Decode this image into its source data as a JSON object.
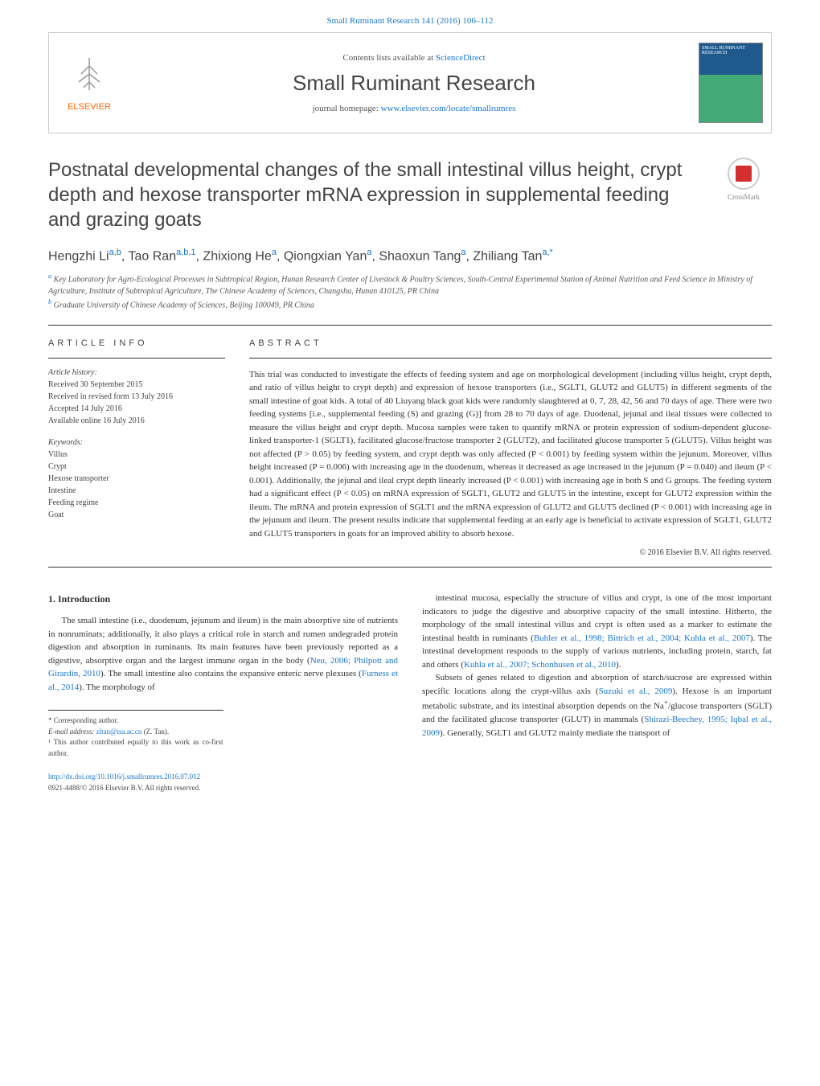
{
  "header": {
    "citation_link": "Small Ruminant Research 141 (2016) 106–112",
    "contents_prefix": "Contents lists available at ",
    "contents_link": "ScienceDirect",
    "journal_name": "Small Ruminant Research",
    "homepage_prefix": "journal homepage: ",
    "homepage_link": "www.elsevier.com/locate/smallrumres",
    "publisher_name": "ELSEVIER",
    "cover_text": "SMALL RUMINANT RESEARCH",
    "crossmark_label": "CrossMark"
  },
  "article": {
    "title": "Postnatal developmental changes of the small intestinal villus height, crypt depth and hexose transporter mRNA expression in supplemental feeding and grazing goats",
    "authors_html": "Hengzhi Li<sup>a,b</sup>, Tao Ran<sup>a,b,1</sup>, Zhixiong He<sup>a</sup>, Qiongxian Yan<sup>a</sup>, Shaoxun Tang<sup>a</sup>, Zhiliang Tan<sup>a,*</sup>",
    "affiliations": [
      "<sup>a</sup> Key Laboratory for Agro-Ecological Processes in Subtropical Region, Hunan Research Center of Livestock & Poultry Sciences, South-Central Experimental Station of Animal Nutrition and Feed Science in Ministry of Agriculture, Institute of Subtropical Agriculture, The Chinese Academy of Sciences, Changsha, Hunan 410125, PR China",
      "<sup>b</sup> Graduate University of Chinese Academy of Sciences, Beijing 100049, PR China"
    ]
  },
  "info": {
    "heading": "ARTICLE INFO",
    "history_label": "Article history:",
    "history": [
      "Received 30 September 2015",
      "Received in revised form 13 July 2016",
      "Accepted 14 July 2016",
      "Available online 16 July 2016"
    ],
    "keywords_label": "Keywords:",
    "keywords": [
      "Villus",
      "Crypt",
      "Hexose transporter",
      "Intestine",
      "Feeding regime",
      "Goat"
    ]
  },
  "abstract": {
    "heading": "ABSTRACT",
    "text": "This trial was conducted to investigate the effects of feeding system and age on morphological development (including villus height, crypt depth, and ratio of villus height to crypt depth) and expression of hexose transporters (i.e., SGLT1, GLUT2 and GLUT5) in different segments of the small intestine of goat kids. A total of 40 Liuyang black goat kids were randomly slaughtered at 0, 7, 28, 42, 56 and 70 days of age. There were two feeding systems [i.e., supplemental feeding (S) and grazing (G)] from 28 to 70 days of age. Duodenal, jejunal and ileal tissues were collected to measure the villus height and crypt depth. Mucosa samples were taken to quantify mRNA or protein expression of sodium-dependent glucose-linked transporter-1 (SGLT1), facilitated glucose/fructose transporter 2 (GLUT2), and facilitated glucose transporter 5 (GLUT5). Villus height was not affected (P > 0.05) by feeding system, and crypt depth was only affected (P < 0.001) by feeding system within the jejunum. Moreover, villus height increased (P = 0.006) with increasing age in the duodenum, whereas it decreased as age increased in the jejunum (P = 0.040) and ileum (P < 0.001). Additionally, the jejunal and ileal crypt depth linearly increased (P < 0.001) with increasing age in both S and G groups. The feeding system had a significant effect (P < 0.05) on mRNA expression of SGLT1, GLUT2 and GLUT5 in the intestine, except for GLUT2 expression within the ileum. The mRNA and protein expression of SGLT1 and the mRNA expression of GLUT2 and GLUT5 declined (P < 0.001) with increasing age in the jejunum and ileum. The present results indicate that supplemental feeding at an early age is beneficial to activate expression of SGLT1, GLUT2 and GLUT5 transporters in goats for an improved ability to absorb hexose.",
    "copyright": "© 2016 Elsevier B.V. All rights reserved."
  },
  "body": {
    "section_heading": "1. Introduction",
    "left_para": "The small intestine (i.e., duodenum, jejunum and ileum) is the main absorptive site of nutrients in nonruminats; additionally, it also plays a critical role in starch and rumen undegraded protein digestion and absorption in ruminants. Its main features have been previously reported as a digestive, absorptive organ and the largest immune organ in the body (<a>Neu, 2006; Philpott and Girardin, 2010</a>). The small intestine also contains the expansive enteric nerve plexuses (<a>Furness et al., 2014</a>). The morphology of",
    "right_para1": "intestinal mucosa, especially the structure of villus and crypt, is one of the most important indicators to judge the digestive and absorptive capacity of the small intestine. Hitherto, the morphology of the small intestinal villus and crypt is often used as a marker to estimate the intestinal health in ruminants (<a>Buhler et al., 1998; Bittrich et al., 2004; Kuhla et al., 2007</a>). The intestinal development responds to the supply of various nutrients, including protein, starch, fat and others (<a>Kuhla et al., 2007; Schonhusen et al., 2010</a>).",
    "right_para2": "Subsets of genes related to digestion and absorption of starch/sucrose are expressed within specific locations along the crypt-villus axis (<a>Suzuki et al., 2009</a>). Hexose is an important metabolic substrate, and its intestinal absorption depends on the Na<sup>+</sup>/glucose transporters (SGLT) and the facilitated glucose transporter (GLUT) in mammals (<a>Shirazi-Beechey, 1995; Iqbal et al., 2009</a>). Generally, SGLT1 and GLUT2 mainly mediate the transport of"
  },
  "footnotes": {
    "corresponding": "* Corresponding author.",
    "email_label": "E-mail address: ",
    "email": "zltan@isa.ac.cn",
    "email_name": " (Z. Tan).",
    "contrib": "¹ This author contributed equally to this work as co-first author.",
    "doi": "http://dx.doi.org/10.1016/j.smallrumres.2016.07.012",
    "issn": "0921-4488/© 2016 Elsevier B.V. All rights reserved."
  },
  "colors": {
    "link": "#1976d2",
    "text": "#333333",
    "publisher_orange": "#ff6600"
  },
  "typography": {
    "title_fontsize": 24,
    "body_fontsize": 11,
    "abstract_fontsize": 11,
    "heading_letterspacing": 4
  }
}
